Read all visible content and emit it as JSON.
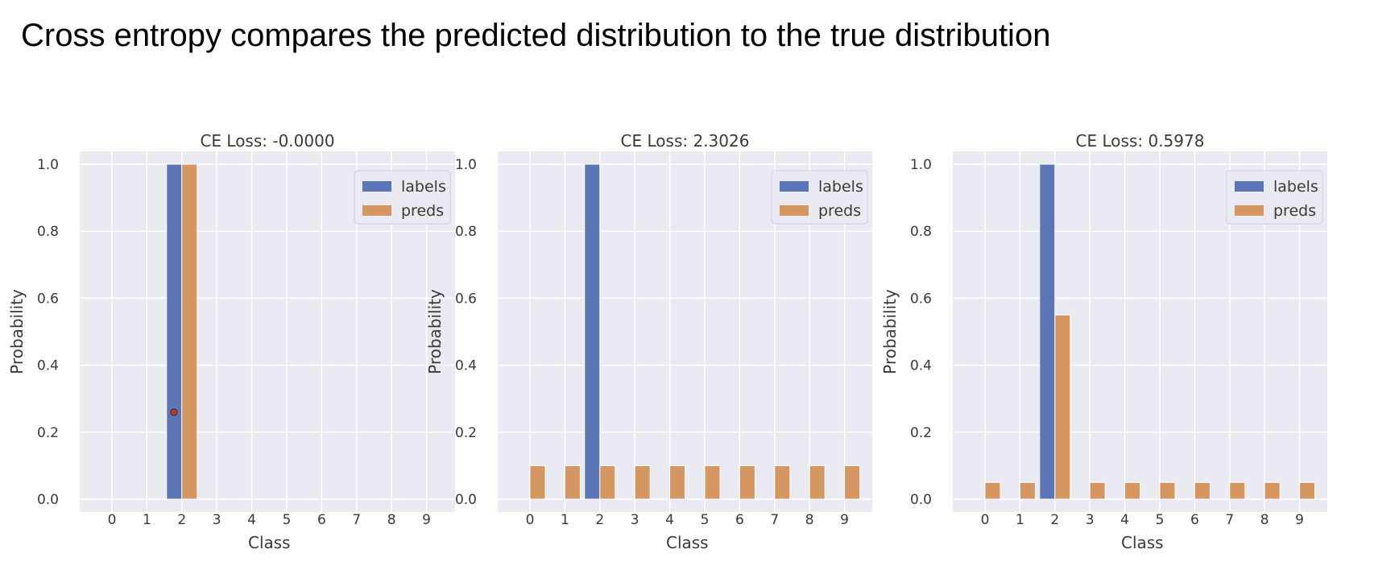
{
  "slide": {
    "title": "Cross entropy compares the predicted distribution to the true distribution"
  },
  "colors": {
    "labels": "#5a76b6",
    "preds": "#d5975f",
    "plot_background": "#eaeaf2",
    "grid": "#ffffff",
    "cursor_dot": "#c0392b"
  },
  "chart_data": [
    {
      "type": "bar",
      "title": "CE Loss: -0.0000",
      "xlabel": "Class",
      "ylabel": "Probability",
      "categories": [
        "0",
        "1",
        "2",
        "3",
        "4",
        "5",
        "6",
        "7",
        "8",
        "9"
      ],
      "yticks": [
        "0.0",
        "0.2",
        "0.4",
        "0.6",
        "0.8",
        "1.0"
      ],
      "ylim": [
        0,
        1.05
      ],
      "grid": true,
      "legend": "top-right",
      "series": [
        {
          "name": "labels",
          "values": [
            0,
            0,
            1.0,
            0,
            0,
            0,
            0,
            0,
            0,
            0
          ]
        },
        {
          "name": "preds",
          "values": [
            0,
            0,
            1.0,
            0,
            0,
            0,
            0,
            0,
            0,
            0
          ]
        }
      ]
    },
    {
      "type": "bar",
      "title": "CE Loss: 2.3026",
      "xlabel": "Class",
      "ylabel": "Probability",
      "categories": [
        "0",
        "1",
        "2",
        "3",
        "4",
        "5",
        "6",
        "7",
        "8",
        "9"
      ],
      "yticks": [
        "0.0",
        "0.2",
        "0.4",
        "0.6",
        "0.8",
        "1.0"
      ],
      "ylim": [
        0,
        1.05
      ],
      "grid": true,
      "legend": "top-right",
      "series": [
        {
          "name": "labels",
          "values": [
            0,
            0,
            1.0,
            0,
            0,
            0,
            0,
            0,
            0,
            0
          ]
        },
        {
          "name": "preds",
          "values": [
            0.1,
            0.1,
            0.1,
            0.1,
            0.1,
            0.1,
            0.1,
            0.1,
            0.1,
            0.1
          ]
        }
      ]
    },
    {
      "type": "bar",
      "title": "CE Loss: 0.5978",
      "xlabel": "Class",
      "ylabel": "Probability",
      "categories": [
        "0",
        "1",
        "2",
        "3",
        "4",
        "5",
        "6",
        "7",
        "8",
        "9"
      ],
      "yticks": [
        "0.0",
        "0.2",
        "0.4",
        "0.6",
        "0.8",
        "1.0"
      ],
      "ylim": [
        0,
        1.05
      ],
      "grid": true,
      "legend": "top-right",
      "series": [
        {
          "name": "labels",
          "values": [
            0,
            0,
            1.0,
            0,
            0,
            0,
            0,
            0,
            0,
            0
          ]
        },
        {
          "name": "preds",
          "values": [
            0.05,
            0.05,
            0.55,
            0.05,
            0.05,
            0.05,
            0.05,
            0.05,
            0.05,
            0.05
          ]
        }
      ]
    }
  ]
}
